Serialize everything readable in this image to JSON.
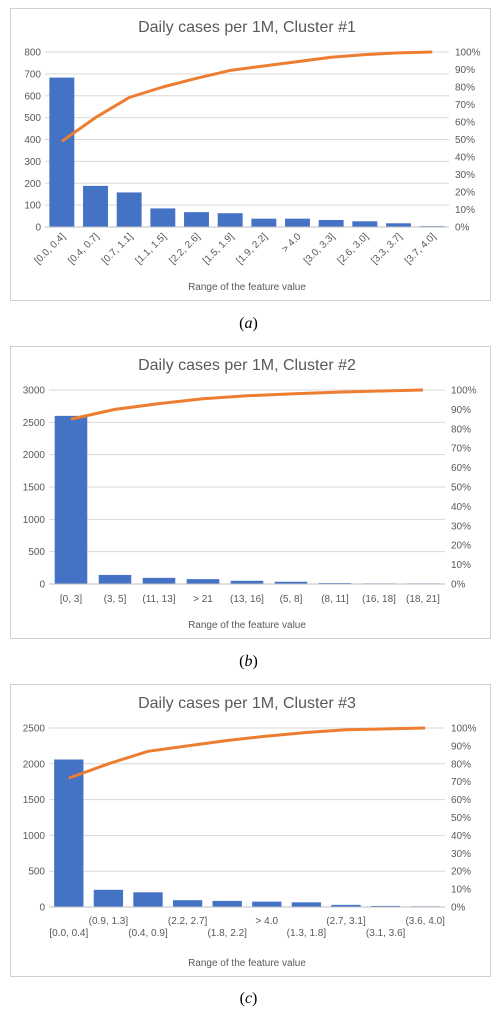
{
  "colors": {
    "bar": "#4472C4",
    "line": "#ED7D31",
    "grid": "#d9d9d9",
    "text": "#595959"
  },
  "chart_data": [
    {
      "type": "bar",
      "title": "Daily cases per 1M, Cluster #1",
      "xlabel": "Range of the feature value",
      "categories": [
        "[0.0, 0.4]",
        "[0.4, 0.7]",
        "[0.7, 1.1]",
        "[1.1, 1.5]",
        "[2.2, 2.6]",
        "[1.5, 1.9]",
        "[1.9, 2.2]",
        "> 4.0",
        "[3.0, 3.3]",
        "[2.6, 3.0]",
        "[3.3, 3.7]",
        "[3.7, 4.0]"
      ],
      "series": [
        {
          "type": "bar",
          "values": [
            683,
            188,
            158,
            85,
            68,
            63,
            38,
            38,
            32,
            26,
            17,
            4
          ]
        },
        {
          "type": "line",
          "axis": "right",
          "values": [
            0.49,
            0.625,
            0.74,
            0.8,
            0.85,
            0.895,
            0.92,
            0.945,
            0.97,
            0.985,
            0.995,
            1.0
          ]
        }
      ],
      "ylim": [
        0,
        800
      ],
      "yticks": [
        "0",
        "100",
        "200",
        "300",
        "400",
        "500",
        "600",
        "700",
        "800"
      ],
      "y2lim": [
        0,
        1
      ],
      "y2ticks": [
        "0%",
        "10%",
        "20%",
        "30%",
        "40%",
        "50%",
        "60%",
        "70%",
        "80%",
        "90%",
        "100%"
      ],
      "grid": true,
      "xlabel_style": "rotated"
    },
    {
      "type": "bar",
      "title": "Daily cases per 1M, Cluster #2",
      "xlabel": "Range of the feature value",
      "categories": [
        "[0, 3]",
        "(3, 5]",
        "(11, 13]",
        "> 21",
        "(13, 16]",
        "(5, 8]",
        "(8, 11]",
        "(16, 18]",
        "(18, 21]"
      ],
      "series": [
        {
          "type": "bar",
          "values": [
            2600,
            140,
            95,
            75,
            50,
            35,
            15,
            10,
            10
          ]
        },
        {
          "type": "line",
          "axis": "right",
          "values": [
            0.85,
            0.9,
            0.93,
            0.955,
            0.97,
            0.98,
            0.988,
            0.995,
            1.0
          ]
        }
      ],
      "ylim": [
        0,
        3000
      ],
      "yticks": [
        "0",
        "500",
        "1000",
        "1500",
        "2000",
        "2500",
        "3000"
      ],
      "y2lim": [
        0,
        1
      ],
      "y2ticks": [
        "0%",
        "10%",
        "20%",
        "30%",
        "40%",
        "50%",
        "60%",
        "70%",
        "80%",
        "90%",
        "100%"
      ],
      "grid": true,
      "xlabel_style": "horizontal"
    },
    {
      "type": "bar",
      "title": "Daily cases per 1M, Cluster #3",
      "xlabel": "Range of the feature value",
      "categories": [
        "[0.0, 0.4]",
        "(0.9, 1.3]",
        "(0.4, 0.9]",
        "(2.2, 2.7]",
        "(1.8, 2.2]",
        "> 4.0",
        "(1.3, 1.8]",
        "(2.7, 3.1]",
        "(3.1, 3.6]",
        "(3.6, 4.0]"
      ],
      "series": [
        {
          "type": "bar",
          "values": [
            2060,
            240,
            205,
            95,
            85,
            75,
            65,
            30,
            15,
            10
          ]
        },
        {
          "type": "line",
          "axis": "right",
          "values": [
            0.72,
            0.8,
            0.87,
            0.9,
            0.93,
            0.955,
            0.975,
            0.99,
            0.995,
            1.0
          ]
        }
      ],
      "ylim": [
        0,
        2500
      ],
      "yticks": [
        "0",
        "500",
        "1000",
        "1500",
        "2000",
        "2500"
      ],
      "y2lim": [
        0,
        1
      ],
      "y2ticks": [
        "0%",
        "10%",
        "20%",
        "30%",
        "40%",
        "50%",
        "60%",
        "70%",
        "80%",
        "90%",
        "100%"
      ],
      "grid": true,
      "xlabel_style": "staggered"
    }
  ],
  "captions": [
    {
      "open": "(",
      "letter": "a",
      "close": ")"
    },
    {
      "open": "(",
      "letter": "b",
      "close": ")"
    },
    {
      "open": "(",
      "letter": "c",
      "close": ")"
    }
  ]
}
